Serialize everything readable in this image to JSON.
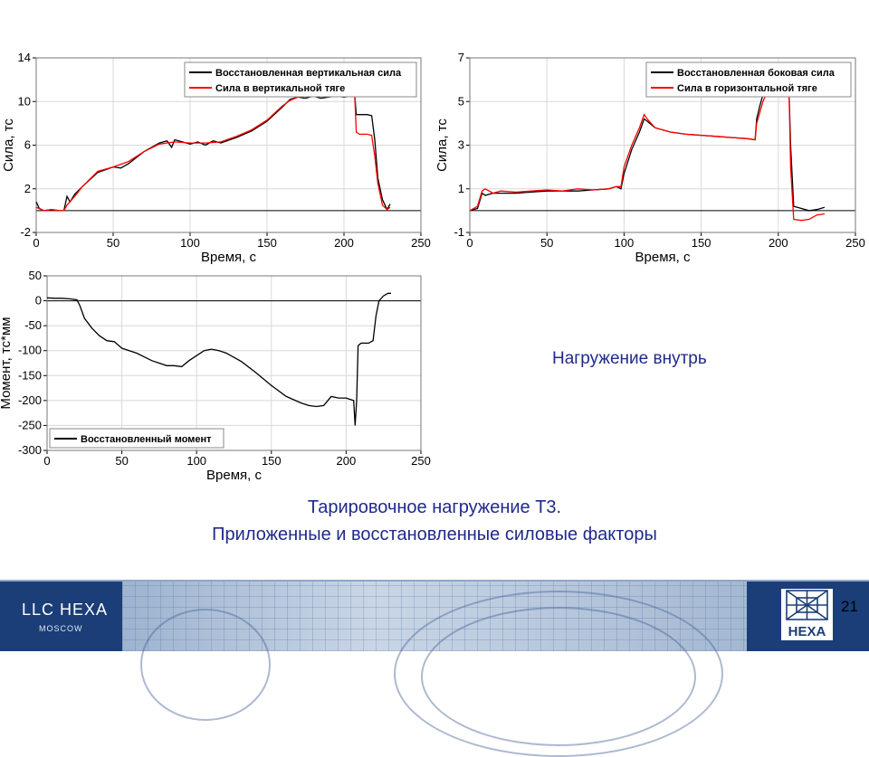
{
  "chart_data": [
    {
      "type": "line",
      "xlabel": "Время, с",
      "ylabel": "Сила, тс",
      "xlim": [
        0,
        250
      ],
      "ylim": [
        -2,
        14
      ],
      "xticks": [
        0,
        50,
        100,
        150,
        200,
        250
      ],
      "yticks": [
        -2,
        2,
        6,
        10,
        14
      ],
      "zero_line": true,
      "legend": "top-right",
      "series": [
        {
          "name": "Восстановленная вертикальная сила",
          "color": "#000000",
          "x": [
            0,
            2,
            5,
            10,
            15,
            18,
            20,
            22,
            25,
            30,
            40,
            50,
            55,
            60,
            70,
            80,
            85,
            88,
            90,
            95,
            100,
            105,
            110,
            115,
            120,
            130,
            140,
            150,
            160,
            165,
            170,
            175,
            180,
            185,
            190,
            195,
            200,
            205,
            207,
            208,
            210,
            215,
            218,
            220,
            222,
            225,
            228,
            230
          ],
          "y": [
            0.8,
            0.2,
            0,
            0.1,
            0,
            0,
            1.3,
            0.8,
            1.5,
            2.2,
            3.5,
            4,
            3.9,
            4.3,
            5.4,
            6.2,
            6.4,
            5.8,
            6.5,
            6.3,
            6.1,
            6.3,
            6,
            6.4,
            6.2,
            6.7,
            7.3,
            8.2,
            9.5,
            10.2,
            10.4,
            10.3,
            10.5,
            10.3,
            10.4,
            10.5,
            10.4,
            10.5,
            10.5,
            8.8,
            8.8,
            8.8,
            8.7,
            6.5,
            3,
            1,
            0.1,
            0.6
          ]
        },
        {
          "name": "Сила в вертикальной тяге",
          "color": "#ff0000",
          "x": [
            0,
            5,
            10,
            15,
            18,
            20,
            25,
            30,
            40,
            50,
            60,
            70,
            80,
            90,
            100,
            110,
            120,
            130,
            140,
            150,
            160,
            165,
            170,
            180,
            190,
            200,
            205,
            207,
            208,
            210,
            215,
            218,
            220,
            222,
            225,
            228,
            230
          ],
          "y": [
            0.3,
            0,
            0.1,
            0,
            0,
            0.5,
            1.3,
            2.2,
            3.6,
            4,
            4.5,
            5.4,
            6.1,
            6.3,
            6.2,
            6.2,
            6.3,
            6.8,
            7.4,
            8.3,
            9.6,
            10.1,
            10.4,
            10.5,
            10.5,
            10.5,
            10.5,
            10.5,
            7.2,
            7,
            7,
            6.9,
            5,
            2.5,
            0.5,
            0.1,
            0.3
          ]
        }
      ]
    },
    {
      "type": "line",
      "xlabel": "Время, с",
      "ylabel": "Сила, тс",
      "xlim": [
        0,
        250
      ],
      "ylim": [
        -1,
        7
      ],
      "xticks": [
        0,
        50,
        100,
        150,
        200,
        250
      ],
      "yticks": [
        -1,
        1,
        3,
        5,
        7
      ],
      "zero_line": true,
      "legend": "top-right",
      "series": [
        {
          "name": "Восстановленная боковая сила",
          "color": "#000000",
          "x": [
            0,
            5,
            8,
            10,
            15,
            20,
            30,
            40,
            50,
            60,
            70,
            80,
            90,
            95,
            98,
            100,
            105,
            110,
            113,
            115,
            120,
            130,
            140,
            150,
            160,
            170,
            180,
            185,
            186,
            188,
            190,
            195,
            198,
            200,
            205,
            207,
            208,
            210,
            215,
            220,
            225,
            230
          ],
          "y": [
            0,
            0.1,
            0.8,
            0.7,
            0.8,
            0.8,
            0.8,
            0.85,
            0.9,
            0.9,
            0.9,
            0.95,
            1,
            1.1,
            1,
            1.7,
            2.8,
            3.6,
            4.2,
            4.1,
            3.8,
            3.6,
            3.5,
            3.45,
            3.4,
            3.35,
            3.3,
            3.25,
            4.2,
            4.8,
            5.3,
            6.2,
            6.7,
            6,
            5.5,
            5.4,
            3,
            0.2,
            0.1,
            0,
            0.05,
            0.15
          ]
        },
        {
          "name": "Сила в горизонтальной тяге",
          "color": "#ff0000",
          "x": [
            0,
            5,
            8,
            10,
            15,
            20,
            30,
            40,
            50,
            60,
            70,
            80,
            90,
            95,
            98,
            100,
            105,
            110,
            113,
            115,
            120,
            130,
            140,
            150,
            160,
            170,
            180,
            185,
            186,
            188,
            190,
            195,
            198,
            200,
            205,
            207,
            208,
            210,
            215,
            220,
            225,
            230
          ],
          "y": [
            0,
            0.2,
            0.9,
            1,
            0.8,
            0.9,
            0.85,
            0.9,
            0.95,
            0.9,
            1,
            0.95,
            1,
            1.1,
            1.1,
            2,
            3,
            3.8,
            4.4,
            4.2,
            3.8,
            3.6,
            3.5,
            3.45,
            3.4,
            3.35,
            3.3,
            3.25,
            4,
            4.5,
            5,
            5.8,
            6.3,
            5.9,
            5.5,
            5.4,
            2,
            -0.4,
            -0.45,
            -0.4,
            -0.2,
            -0.15
          ]
        }
      ]
    },
    {
      "type": "line",
      "xlabel": "Время, с",
      "ylabel": "Момент, тс*мм",
      "xlim": [
        0,
        250
      ],
      "ylim": [
        -300,
        50
      ],
      "xticks": [
        0,
        50,
        100,
        150,
        200,
        250
      ],
      "yticks": [
        -300,
        -250,
        -200,
        -150,
        -100,
        -50,
        0,
        50
      ],
      "zero_line": true,
      "legend": "bottom-left",
      "series": [
        {
          "name": "Восстановленный момент",
          "color": "#000000",
          "x": [
            0,
            5,
            10,
            15,
            20,
            22,
            25,
            30,
            35,
            40,
            45,
            50,
            60,
            70,
            80,
            85,
            90,
            95,
            100,
            105,
            110,
            115,
            120,
            130,
            140,
            150,
            160,
            170,
            175,
            180,
            185,
            190,
            195,
            200,
            205,
            206,
            207,
            208,
            210,
            215,
            218,
            220,
            222,
            225,
            228,
            230
          ],
          "y": [
            6,
            5,
            5,
            4,
            2,
            -10,
            -35,
            -55,
            -70,
            -80,
            -82,
            -95,
            -105,
            -120,
            -130,
            -130,
            -132,
            -120,
            -110,
            -100,
            -97,
            -100,
            -105,
            -122,
            -145,
            -170,
            -192,
            -205,
            -210,
            -212,
            -210,
            -192,
            -195,
            -195,
            -200,
            -250,
            -200,
            -90,
            -85,
            -85,
            -80,
            -30,
            0,
            10,
            15,
            15
          ]
        }
      ]
    }
  ],
  "note": "Нагружение внутрь",
  "caption_line1": "Тарировочное нагружение Т3.",
  "caption_line2": "Приложенные и восстановленные  силовые факторы",
  "footer": {
    "company": "LLC  HEXA",
    "city": "MOSCOW",
    "logo_text": "HEXA",
    "page_number": "21"
  }
}
